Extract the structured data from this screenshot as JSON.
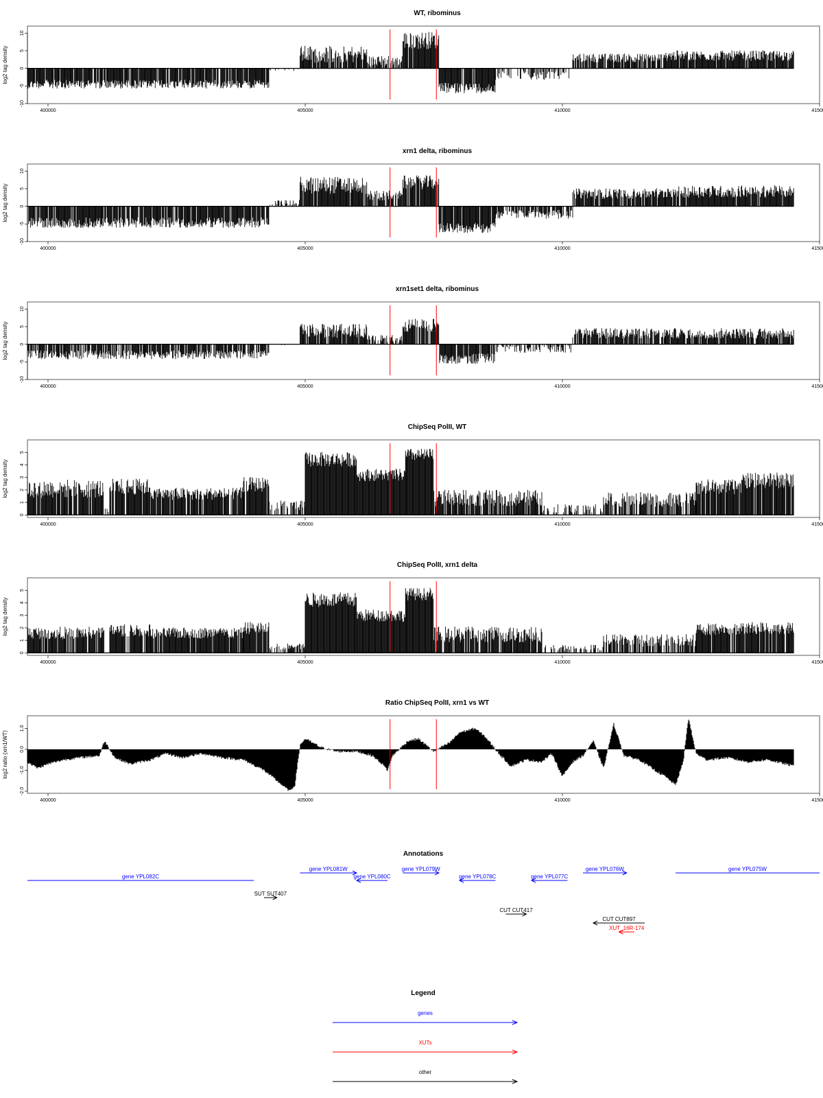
{
  "colors": {
    "bars": "#000000",
    "marker": "#ff0000",
    "gene": "#0000ff",
    "xut": "#ff0000",
    "other": "#000000",
    "frame": "#333333"
  },
  "marker_positions": [
    406650,
    407550
  ],
  "x_axis": {
    "xlim": [
      399600,
      415000
    ],
    "ticks": [
      400000,
      405000,
      410000,
      415000
    ],
    "tick_labels": [
      "400000",
      "405000",
      "410000",
      "415000"
    ]
  },
  "chart_data": [
    {
      "type": "bar",
      "title": "WT, ribominus",
      "ylabel": "log2 tag density",
      "ylim": [
        -10,
        12
      ],
      "yticks": [
        -10,
        -5,
        0,
        5,
        10
      ],
      "ytick_labels": [
        "-10",
        "-5",
        "0",
        "5",
        "10"
      ],
      "segments": [
        {
          "x0": 399600,
          "x1": 404300,
          "sign": -1,
          "level": 4,
          "jitter": 2.5,
          "density": 0.9
        },
        {
          "x0": 404300,
          "x1": 404900,
          "sign": -1,
          "level": 0.3,
          "jitter": 1,
          "density": 0.1
        },
        {
          "x0": 404900,
          "x1": 406200,
          "sign": 1,
          "level": 3,
          "jitter": 5,
          "density": 0.9
        },
        {
          "x0": 406200,
          "x1": 406900,
          "sign": 1,
          "level": 1.5,
          "jitter": 3,
          "density": 0.7
        },
        {
          "x0": 406900,
          "x1": 407600,
          "sign": 1,
          "level": 7,
          "jitter": 5,
          "density": 0.95
        },
        {
          "x0": 407600,
          "x1": 408700,
          "sign": -1,
          "level": 5,
          "jitter": 3,
          "density": 0.95
        },
        {
          "x0": 408700,
          "x1": 410200,
          "sign": -1,
          "level": 1.5,
          "jitter": 2.5,
          "density": 0.4
        },
        {
          "x0": 410200,
          "x1": 412000,
          "sign": 1,
          "level": 2.5,
          "jitter": 2.5,
          "density": 0.8
        },
        {
          "x0": 412000,
          "x1": 414500,
          "sign": 1,
          "level": 3,
          "jitter": 3,
          "density": 0.95
        }
      ]
    },
    {
      "type": "bar",
      "title": "xrn1 delta, ribominus",
      "ylabel": "log2 tag density",
      "ylim": [
        -10,
        12
      ],
      "yticks": [
        -10,
        -5,
        0,
        5,
        10
      ],
      "ytick_labels": [
        "-10",
        "-5",
        "0",
        "5",
        "10"
      ],
      "segments": [
        {
          "x0": 399600,
          "x1": 404300,
          "sign": -1,
          "level": 4,
          "jitter": 3,
          "density": 0.9
        },
        {
          "x0": 404300,
          "x1": 404900,
          "sign": 1,
          "level": 0.8,
          "jitter": 1.5,
          "density": 0.3
        },
        {
          "x0": 404900,
          "x1": 406200,
          "sign": 1,
          "level": 5,
          "jitter": 5,
          "density": 0.95
        },
        {
          "x0": 406200,
          "x1": 406900,
          "sign": 1,
          "level": 2.5,
          "jitter": 3,
          "density": 0.8
        },
        {
          "x0": 406900,
          "x1": 407600,
          "sign": 1,
          "level": 6,
          "jitter": 4,
          "density": 0.95
        },
        {
          "x0": 407600,
          "x1": 408700,
          "sign": -1,
          "level": 5.5,
          "jitter": 3,
          "density": 0.95
        },
        {
          "x0": 408700,
          "x1": 410200,
          "sign": -1,
          "level": 1.8,
          "jitter": 2.5,
          "density": 0.7
        },
        {
          "x0": 410200,
          "x1": 412000,
          "sign": 1,
          "level": 3,
          "jitter": 3,
          "density": 0.9
        },
        {
          "x0": 412000,
          "x1": 414500,
          "sign": 1,
          "level": 3.5,
          "jitter": 3.5,
          "density": 0.95
        }
      ]
    },
    {
      "type": "bar",
      "title": "xrn1set1 delta, ribominus",
      "ylabel": "log2 tag density",
      "ylim": [
        -10,
        12
      ],
      "yticks": [
        -10,
        -5,
        0,
        5,
        10
      ],
      "ytick_labels": [
        "-10",
        "-5",
        "0",
        "5",
        "10"
      ],
      "segments": [
        {
          "x0": 399600,
          "x1": 404300,
          "sign": -1,
          "level": 2.5,
          "jitter": 2.5,
          "density": 0.8
        },
        {
          "x0": 404300,
          "x1": 404900,
          "sign": -1,
          "level": 0.3,
          "jitter": 1,
          "density": 0.1
        },
        {
          "x0": 404900,
          "x1": 406200,
          "sign": 1,
          "level": 3,
          "jitter": 4,
          "density": 0.9
        },
        {
          "x0": 406200,
          "x1": 406900,
          "sign": 1,
          "level": 1.2,
          "jitter": 2,
          "density": 0.6
        },
        {
          "x0": 406900,
          "x1": 407600,
          "sign": 1,
          "level": 4.5,
          "jitter": 4,
          "density": 0.9
        },
        {
          "x0": 407600,
          "x1": 408700,
          "sign": -1,
          "level": 3.5,
          "jitter": 3,
          "density": 0.9
        },
        {
          "x0": 408700,
          "x1": 410200,
          "sign": -1,
          "level": 1,
          "jitter": 2,
          "density": 0.4
        },
        {
          "x0": 410200,
          "x1": 412000,
          "sign": 1,
          "level": 2.5,
          "jitter": 3,
          "density": 0.8
        },
        {
          "x0": 412000,
          "x1": 414500,
          "sign": 1,
          "level": 2.5,
          "jitter": 3,
          "density": 0.85
        }
      ]
    },
    {
      "type": "bar",
      "title": "ChipSeq PolII, WT",
      "ylabel": "log2 tag density",
      "ylim": [
        -0.2,
        6
      ],
      "yticks": [
        0,
        1,
        2,
        3,
        4,
        5
      ],
      "ytick_labels": [
        "0",
        "1",
        "2",
        "3",
        "4",
        "5"
      ],
      "segments": [
        {
          "x0": 399600,
          "x1": 401100,
          "sign": 1,
          "level": 1.8,
          "jitter": 1.5,
          "density": 0.9
        },
        {
          "x0": 401100,
          "x1": 401200,
          "sign": 1,
          "level": 0.3,
          "jitter": 0.3,
          "density": 0.3
        },
        {
          "x0": 401200,
          "x1": 402000,
          "sign": 1,
          "level": 2,
          "jitter": 1.3,
          "density": 0.9
        },
        {
          "x0": 402000,
          "x1": 403800,
          "sign": 1,
          "level": 1.5,
          "jitter": 1,
          "density": 0.9
        },
        {
          "x0": 403800,
          "x1": 404300,
          "sign": 1,
          "level": 2.2,
          "jitter": 1.2,
          "density": 0.9
        },
        {
          "x0": 404300,
          "x1": 405000,
          "sign": 1,
          "level": 0.6,
          "jitter": 0.8,
          "density": 0.5
        },
        {
          "x0": 405000,
          "x1": 406000,
          "sign": 1,
          "level": 4.2,
          "jitter": 1.2,
          "density": 1
        },
        {
          "x0": 406000,
          "x1": 406950,
          "sign": 1,
          "level": 3,
          "jitter": 1,
          "density": 1
        },
        {
          "x0": 406950,
          "x1": 407500,
          "sign": 1,
          "level": 4.6,
          "jitter": 1,
          "density": 1
        },
        {
          "x0": 407500,
          "x1": 409600,
          "sign": 1,
          "level": 1.1,
          "jitter": 1.3,
          "density": 0.85
        },
        {
          "x0": 409600,
          "x1": 410800,
          "sign": 1,
          "level": 0.3,
          "jitter": 0.8,
          "density": 0.3
        },
        {
          "x0": 410800,
          "x1": 412600,
          "sign": 1,
          "level": 1,
          "jitter": 1.2,
          "density": 0.7
        },
        {
          "x0": 412600,
          "x1": 413500,
          "sign": 1,
          "level": 2,
          "jitter": 1.2,
          "density": 0.9
        },
        {
          "x0": 413500,
          "x1": 414500,
          "sign": 1,
          "level": 2.5,
          "jitter": 1.3,
          "density": 0.9
        }
      ]
    },
    {
      "type": "bar",
      "title": "ChipSeq PolII, xrn1 delta",
      "ylabel": "log2 tag density",
      "ylim": [
        -0.2,
        6
      ],
      "yticks": [
        0,
        1,
        2,
        3,
        4,
        5
      ],
      "ytick_labels": [
        "0",
        "1",
        "2",
        "3",
        "4",
        "5"
      ],
      "segments": [
        {
          "x0": 399600,
          "x1": 401100,
          "sign": 1,
          "level": 1.4,
          "jitter": 1,
          "density": 0.9
        },
        {
          "x0": 401100,
          "x1": 401200,
          "sign": 1,
          "level": 0.3,
          "jitter": 0.3,
          "density": 0.3
        },
        {
          "x0": 401200,
          "x1": 402000,
          "sign": 1,
          "level": 1.6,
          "jitter": 1,
          "density": 0.9
        },
        {
          "x0": 402000,
          "x1": 403800,
          "sign": 1,
          "level": 1.4,
          "jitter": 0.9,
          "density": 0.9
        },
        {
          "x0": 403800,
          "x1": 404300,
          "sign": 1,
          "level": 1.8,
          "jitter": 1,
          "density": 0.9
        },
        {
          "x0": 404300,
          "x1": 405000,
          "sign": 1,
          "level": 0.4,
          "jitter": 0.5,
          "density": 0.5
        },
        {
          "x0": 405000,
          "x1": 406000,
          "sign": 1,
          "level": 4,
          "jitter": 1.2,
          "density": 1
        },
        {
          "x0": 406000,
          "x1": 406950,
          "sign": 1,
          "level": 2.8,
          "jitter": 1,
          "density": 1
        },
        {
          "x0": 406950,
          "x1": 407500,
          "sign": 1,
          "level": 4.5,
          "jitter": 1,
          "density": 1
        },
        {
          "x0": 407500,
          "x1": 409600,
          "sign": 1,
          "level": 1.2,
          "jitter": 1.3,
          "density": 0.85
        },
        {
          "x0": 409600,
          "x1": 410800,
          "sign": 1,
          "level": 0.3,
          "jitter": 0.5,
          "density": 0.4
        },
        {
          "x0": 410800,
          "x1": 412600,
          "sign": 1,
          "level": 0.8,
          "jitter": 1,
          "density": 0.7
        },
        {
          "x0": 412600,
          "x1": 413500,
          "sign": 1,
          "level": 1.7,
          "jitter": 1,
          "density": 0.9
        },
        {
          "x0": 413500,
          "x1": 414500,
          "sign": 1,
          "level": 1.8,
          "jitter": 1,
          "density": 0.9
        }
      ]
    },
    {
      "type": "area",
      "title": "Ratio ChipSeq PolII, xrn1 vs WT",
      "ylabel": "log2 ratio (xrn1/WT)",
      "ylim": [
        -2.1,
        1.6
      ],
      "yticks": [
        -2.0,
        -1.0,
        0.0,
        1.0
      ],
      "ytick_labels": [
        "-2.0",
        "-1.0",
        "0.0",
        "1.0"
      ],
      "x": [
        399600,
        399800,
        400000,
        400300,
        400600,
        401000,
        401100,
        401300,
        401600,
        402000,
        402300,
        402600,
        403000,
        403400,
        403800,
        404200,
        404500,
        404700,
        404800,
        404900,
        405000,
        405300,
        405600,
        406000,
        406300,
        406500,
        406600,
        406700,
        407000,
        407200,
        407500,
        407800,
        408000,
        408300,
        408500,
        408800,
        409000,
        409300,
        409600,
        409800,
        410000,
        410200,
        410400,
        410600,
        410800,
        411000,
        411200,
        411500,
        411800,
        412000,
        412200,
        412350,
        412450,
        412600,
        412800,
        413200,
        413600,
        414000,
        414500
      ],
      "y": [
        -0.6,
        -0.9,
        -0.7,
        -0.5,
        -0.4,
        -0.3,
        0.4,
        -0.4,
        -0.7,
        -0.5,
        -0.2,
        -0.4,
        -0.2,
        -0.4,
        -0.5,
        -1.0,
        -1.6,
        -2.0,
        -1.7,
        0.2,
        0.5,
        0.1,
        -0.1,
        -0.1,
        -0.3,
        -0.7,
        -1.0,
        -0.3,
        0.4,
        0.5,
        -0.1,
        0.3,
        0.8,
        1.0,
        0.6,
        -0.3,
        -0.8,
        -0.5,
        -0.6,
        -0.2,
        -1.3,
        -0.6,
        -0.3,
        0.4,
        -0.9,
        1.2,
        -0.3,
        -0.5,
        -1.0,
        -1.3,
        -1.7,
        -0.6,
        1.5,
        -0.2,
        -0.5,
        -0.4,
        -0.6,
        -0.5,
        -0.8
      ]
    }
  ],
  "annotations": {
    "title": "Annotations",
    "items": [
      {
        "label": "gene YPL082C",
        "kind": "gene",
        "start": 399600,
        "end": 404000,
        "row": 1,
        "dir": "none"
      },
      {
        "label": "gene YPL081W",
        "kind": "gene",
        "start": 404900,
        "end": 406000,
        "row": 0,
        "dir": "right"
      },
      {
        "label": "gene YPL080C",
        "kind": "gene",
        "start": 406000,
        "end": 406600,
        "row": 1,
        "dir": "left"
      },
      {
        "label": "gene YPL079W",
        "kind": "gene",
        "start": 406900,
        "end": 407600,
        "row": 0,
        "dir": "right"
      },
      {
        "label": "gene YPL078C",
        "kind": "gene",
        "start": 408000,
        "end": 408700,
        "row": 1,
        "dir": "left"
      },
      {
        "label": "gene YPL077C",
        "kind": "gene",
        "start": 409400,
        "end": 410100,
        "row": 1,
        "dir": "left"
      },
      {
        "label": "gene YPL076W",
        "kind": "gene",
        "start": 410400,
        "end": 411250,
        "row": 0,
        "dir": "right"
      },
      {
        "label": "gene YPL075W",
        "kind": "gene",
        "start": 412200,
        "end": 415000,
        "row": 0,
        "dir": "none"
      },
      {
        "label": "SUT SUT407",
        "kind": "other",
        "start": 404200,
        "end": 404450,
        "row": 3,
        "dir": "right"
      },
      {
        "label": "CUT CUT417",
        "kind": "other",
        "start": 408900,
        "end": 409300,
        "row": 5,
        "dir": "right"
      },
      {
        "label": "CUT CUT897",
        "kind": "other",
        "start": 410600,
        "end": 411600,
        "row": 6,
        "dir": "left"
      },
      {
        "label": "XUT_16R-174",
        "kind": "xut",
        "start": 411100,
        "end": 411400,
        "row": 7,
        "dir": "left"
      }
    ]
  },
  "legend": {
    "title": "Legend",
    "items": [
      {
        "label": "genes",
        "kind": "gene"
      },
      {
        "label": "XUTs",
        "kind": "xut"
      },
      {
        "label": "other",
        "kind": "other"
      }
    ]
  }
}
